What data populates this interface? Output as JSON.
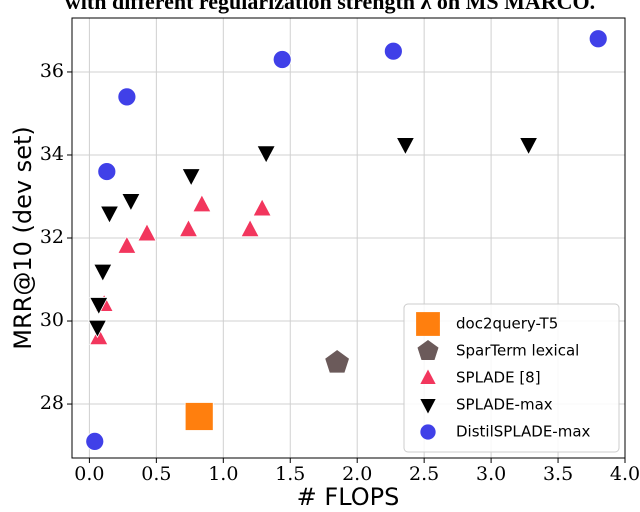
{
  "chart_data": {
    "type": "scatter",
    "title": "with different regularization strength λ on MS MARCO.",
    "x_label": "# FLOPS",
    "y_label": "MRR@10 (dev set)",
    "xlim": [
      -0.13,
      4.0
    ],
    "ylim": [
      26.7,
      37.3
    ],
    "xticks": [
      {
        "value": 0,
        "label": "0.0"
      },
      0.5,
      {
        "value": 1,
        "label": "1.0"
      },
      1.5,
      {
        "value": 2,
        "label": "2.0"
      },
      2.5,
      {
        "value": 3,
        "label": "3.0"
      },
      3.5,
      {
        "value": 4,
        "label": "4.0"
      }
    ],
    "yticks": [
      28,
      30,
      32,
      34,
      36
    ],
    "grid": true,
    "legend": "lower right",
    "series": [
      {
        "name": "doc2query-T5",
        "color": "#ff7f0e",
        "marker": "square",
        "x": [
          0.82
        ],
        "values": [
          27.7
        ]
      },
      {
        "name": "SparTerm lexical",
        "color": "#6b5a5a",
        "marker": "pentagon",
        "x": [
          1.85
        ],
        "values": [
          29.0
        ]
      },
      {
        "name": "SPLADE [8]",
        "color": "#f2365d",
        "marker": "triangle-up",
        "x": [
          0.07,
          0.11,
          0.28,
          0.43,
          0.74,
          0.84,
          1.2,
          1.29
        ],
        "values": [
          29.6,
          30.4,
          31.8,
          32.1,
          32.2,
          32.8,
          32.2,
          32.7
        ]
      },
      {
        "name": "SPLADE-max",
        "color": "#000000",
        "marker": "triangle-down",
        "x": [
          0.06,
          0.07,
          0.1,
          0.15,
          0.31,
          0.76,
          1.32,
          2.36,
          3.28
        ],
        "values": [
          29.85,
          30.4,
          31.2,
          32.6,
          32.9,
          33.5,
          34.05,
          34.25,
          34.25
        ]
      },
      {
        "name": "DistilSPLADE-max",
        "color": "#4040e8",
        "marker": "circle",
        "x": [
          0.04,
          0.13,
          0.28,
          1.44,
          2.27,
          3.8
        ],
        "values": [
          27.1,
          33.6,
          35.4,
          36.3,
          36.5,
          36.8
        ]
      }
    ]
  }
}
